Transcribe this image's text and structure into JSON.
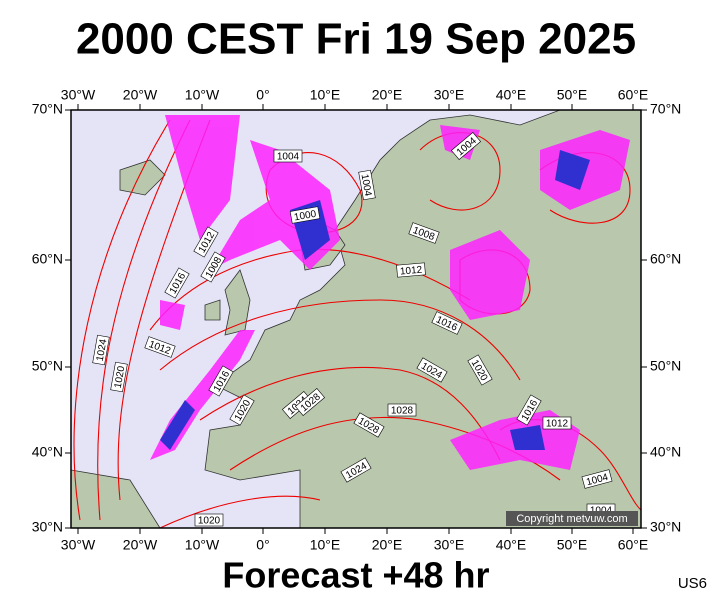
{
  "header": {
    "title": "2000 CEST Fri 19 Sep 2025"
  },
  "map": {
    "lon_labels": [
      "30°W",
      "20°W",
      "10°W",
      "0°",
      "10°E",
      "20°E",
      "30°E",
      "40°E",
      "50°E",
      "60°E"
    ],
    "lat_labels": [
      "70°N",
      "60°N",
      "50°N",
      "40°N",
      "30°N"
    ],
    "isobar_labels": [
      "1004",
      "1004",
      "1004",
      "1000",
      "1008",
      "1012",
      "1008",
      "1016",
      "1012",
      "1016",
      "1012",
      "1024",
      "1020",
      "1016",
      "1024",
      "1020",
      "1020",
      "1024",
      "1028",
      "1028",
      "1028",
      "1016",
      "1012",
      "1024",
      "1004",
      "1004",
      "1020"
    ],
    "copyright": "Copyright metvuw.com"
  },
  "footer": {
    "forecast": "Forecast +48 hr",
    "code": "US6"
  }
}
